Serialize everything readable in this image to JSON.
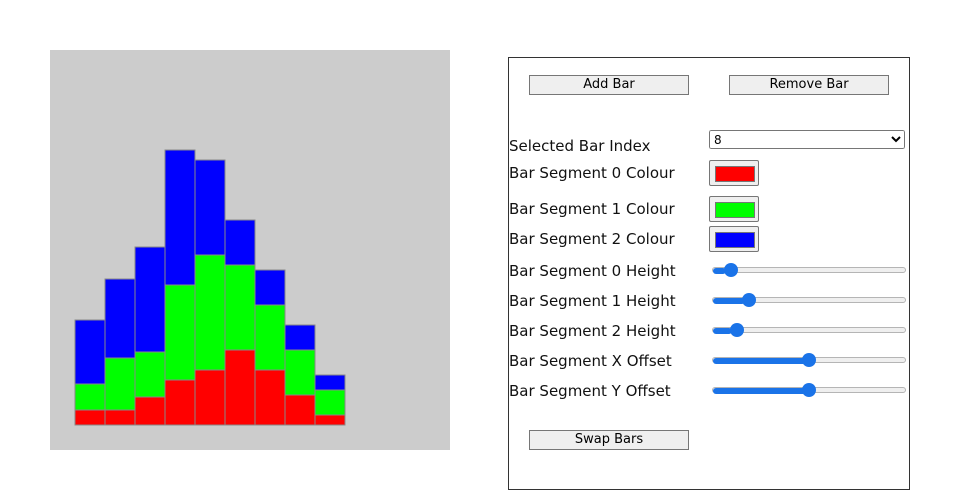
{
  "canvas": {
    "background": "#cccccc",
    "segment_colours": [
      "#ff0000",
      "#00ff00",
      "#0000ff"
    ],
    "bars": [
      {
        "segments": [
          15,
          26,
          64
        ]
      },
      {
        "segments": [
          15,
          52,
          79
        ]
      },
      {
        "segments": [
          28,
          45,
          105
        ]
      },
      {
        "segments": [
          45,
          95,
          135
        ]
      },
      {
        "segments": [
          55,
          115,
          95
        ]
      },
      {
        "segments": [
          75,
          85,
          45
        ]
      },
      {
        "segments": [
          55,
          65,
          35
        ]
      },
      {
        "segments": [
          30,
          45,
          25
        ]
      },
      {
        "segments": [
          10,
          25,
          15
        ]
      }
    ]
  },
  "controls": {
    "buttons": {
      "add": "Add Bar",
      "remove": "Remove Bar",
      "swap": "Swap Bars"
    },
    "selected_label": "Selected Bar Index",
    "index_options": [
      0,
      1,
      2,
      3,
      4,
      5,
      6,
      7,
      8
    ],
    "selected_index": 8,
    "colour_labels": [
      "Bar Segment 0 Colour",
      "Bar Segment 1 Colour",
      "Bar Segment 2 Colour"
    ],
    "height_labels": [
      "Bar Segment 0 Height",
      "Bar Segment 1 Height",
      "Bar Segment 2 Height"
    ],
    "height_range": [
      0,
      150
    ],
    "offsets": [
      {
        "label": "Bar Segment X Offset",
        "value": 0
      },
      {
        "label": "Bar Segment Y Offset",
        "value": 0
      }
    ],
    "offset_range": [
      -100,
      100
    ]
  }
}
